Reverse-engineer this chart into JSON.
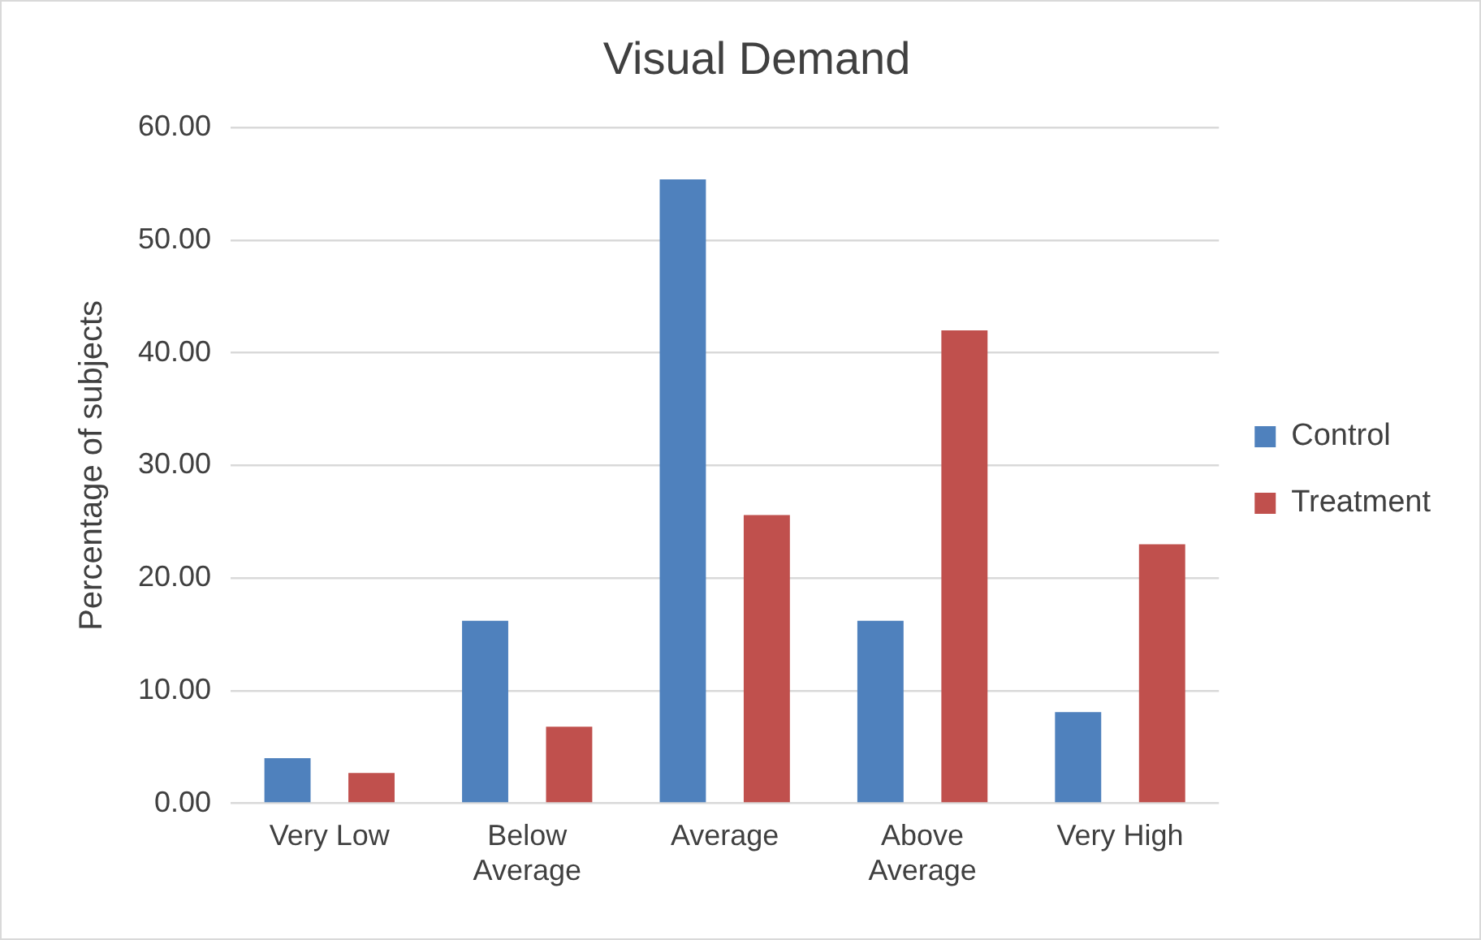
{
  "chart_data": {
    "type": "bar",
    "title": "Visual Demand",
    "ylabel": "Percentage of subjects",
    "categories": [
      "Very Low",
      "Below Average",
      "Average",
      "Above Average",
      "Very High"
    ],
    "series": [
      {
        "name": "Control",
        "color": "#4f81bd",
        "values": [
          4.0,
          16.2,
          55.4,
          16.2,
          8.1
        ]
      },
      {
        "name": "Treatment",
        "color": "#c0504d",
        "values": [
          2.7,
          6.8,
          25.6,
          42.0,
          23.0
        ]
      }
    ],
    "ylim": [
      0,
      60
    ],
    "yticks": [
      {
        "value": 0,
        "label": "0.00"
      },
      {
        "value": 10,
        "label": "10.00"
      },
      {
        "value": 20,
        "label": "20.00"
      },
      {
        "value": 30,
        "label": "30.00"
      },
      {
        "value": 40,
        "label": "40.00"
      },
      {
        "value": 50,
        "label": "50.00"
      },
      {
        "value": 60,
        "label": "60.00"
      }
    ],
    "grid": "y",
    "legend": "right"
  }
}
